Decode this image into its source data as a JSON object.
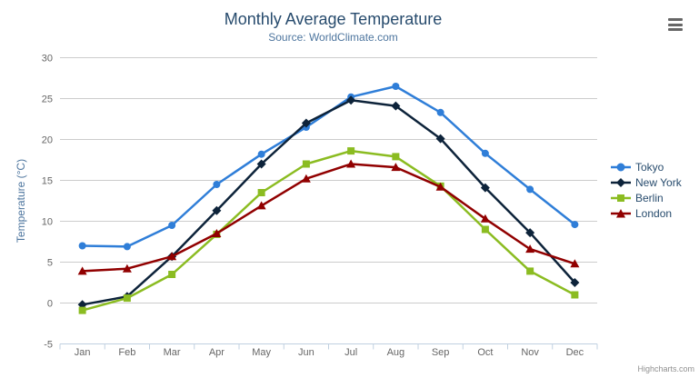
{
  "header": {
    "title": "Monthly Average Temperature",
    "subtitle": "Source: WorldClimate.com"
  },
  "credits": {
    "label": "Highcharts.com"
  },
  "colors": {
    "title_text": "#274b6d",
    "subtitle_text": "#4d759e",
    "axis_label_text": "#666666",
    "axis_title_text": "#4d759e",
    "legend_text": "#274b6d",
    "grid_line": "#cccccc",
    "axis_line": "#c0d0e0",
    "background": "#ffffff",
    "menu_icon": "#666666"
  },
  "chart_data": {
    "type": "line",
    "title": "Monthly Average Temperature",
    "subtitle": "Source: WorldClimate.com",
    "categories": [
      "Jan",
      "Feb",
      "Mar",
      "Apr",
      "May",
      "Jun",
      "Jul",
      "Aug",
      "Sep",
      "Oct",
      "Nov",
      "Dec"
    ],
    "series": [
      {
        "name": "Tokyo",
        "color": "#2f7ed8",
        "marker": "circle",
        "values": [
          7.0,
          6.9,
          9.5,
          14.5,
          18.2,
          21.5,
          25.2,
          26.5,
          23.3,
          18.3,
          13.9,
          9.6
        ]
      },
      {
        "name": "New York",
        "color": "#0d233a",
        "marker": "diamond",
        "values": [
          -0.2,
          0.8,
          5.7,
          11.3,
          17.0,
          22.0,
          24.8,
          24.1,
          20.1,
          14.1,
          8.6,
          2.5
        ]
      },
      {
        "name": "Berlin",
        "color": "#8bbc21",
        "marker": "square",
        "values": [
          -0.9,
          0.6,
          3.5,
          8.4,
          13.5,
          17.0,
          18.6,
          17.9,
          14.3,
          9.0,
          3.9,
          1.0
        ]
      },
      {
        "name": "London",
        "color": "#910000",
        "marker": "triangle",
        "values": [
          3.9,
          4.2,
          5.7,
          8.5,
          11.9,
          15.2,
          17.0,
          16.6,
          14.2,
          10.3,
          6.6,
          4.8
        ]
      }
    ],
    "xlabel": "",
    "ylabel": "Temperature (°C)",
    "yAxis": {
      "title": "Temperature (°C)",
      "min": -5,
      "max": 30,
      "tickInterval": 5
    },
    "ylim": [
      -5,
      30
    ],
    "grid": true,
    "legend_position": "right"
  }
}
